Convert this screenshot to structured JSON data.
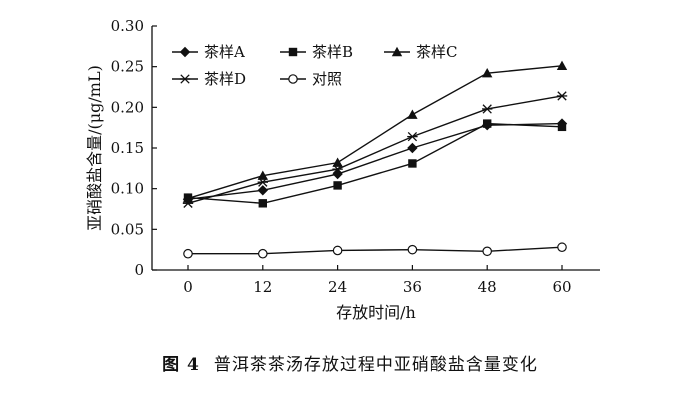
{
  "chart_data": {
    "type": "line",
    "x": [
      0,
      12,
      24,
      36,
      48,
      60
    ],
    "xlabel": "存放时间/h",
    "ylabel": "亚硝酸盐含量/(μg/mL)",
    "ylim": [
      0,
      0.3
    ],
    "yticks": [
      "0",
      "0.05",
      "0.10",
      "0.15",
      "0.20",
      "0.25",
      "0.30"
    ],
    "xticks": [
      "0",
      "12",
      "24",
      "36",
      "48",
      "60"
    ],
    "grid": false,
    "legend_position": "top-left",
    "series": [
      {
        "name": "茶样A",
        "marker": "diamond",
        "values": [
          0.087,
          0.098,
          0.118,
          0.15,
          0.178,
          0.18
        ]
      },
      {
        "name": "茶样B",
        "marker": "square",
        "values": [
          0.089,
          0.082,
          0.104,
          0.131,
          0.18,
          0.176
        ]
      },
      {
        "name": "茶样C",
        "marker": "triangle",
        "values": [
          0.088,
          0.116,
          0.132,
          0.191,
          0.242,
          0.251
        ]
      },
      {
        "name": "茶样D",
        "marker": "asterisk",
        "values": [
          0.082,
          0.108,
          0.124,
          0.164,
          0.198,
          0.214
        ]
      },
      {
        "name": "对照",
        "marker": "circle-open",
        "values": [
          0.02,
          0.02,
          0.024,
          0.025,
          0.023,
          0.028
        ]
      }
    ]
  },
  "caption": {
    "fig_no": "图 4",
    "text": "普洱茶茶汤存放过程中亚硝酸盐含量变化"
  }
}
